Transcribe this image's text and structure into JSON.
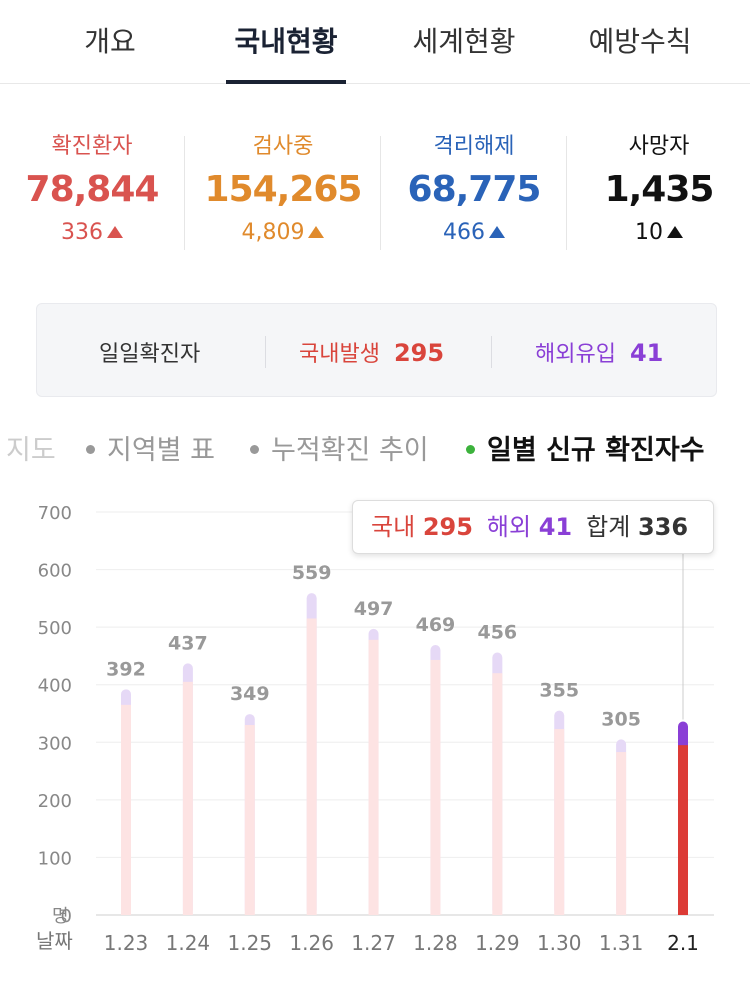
{
  "tabs": [
    {
      "label": "개요",
      "active": false
    },
    {
      "label": "국내현황",
      "active": true
    },
    {
      "label": "세계현황",
      "active": false
    },
    {
      "label": "예방수칙",
      "active": false
    }
  ],
  "stats": [
    {
      "label": "확진환자",
      "value": "78,844",
      "delta": "336",
      "color": "#d9534f"
    },
    {
      "label": "검사중",
      "value": "154,265",
      "delta": "4,809",
      "color": "#e08a2c"
    },
    {
      "label": "격리해제",
      "value": "68,775",
      "delta": "466",
      "color": "#2a63b8"
    },
    {
      "label": "사망자",
      "value": "1,435",
      "delta": "10",
      "color": "#111111"
    }
  ],
  "daily": {
    "title": "일일확진자",
    "domestic_label": "국내발생",
    "domestic_value": "295",
    "overseas_label": "해외유입",
    "overseas_value": "41"
  },
  "subtabs": [
    {
      "label": "지도",
      "state": "fade"
    },
    {
      "label": "지역별 표",
      "state": "normal"
    },
    {
      "label": "누적확진 추이",
      "state": "normal"
    },
    {
      "label": "일별 신규 확진자수",
      "state": "active"
    }
  ],
  "tooltip": {
    "domestic_label": "국내",
    "domestic_value": "295",
    "overseas_label": "해외",
    "overseas_value": "41",
    "total_label": "합계",
    "total_value": "336"
  },
  "chart_data": {
    "type": "bar",
    "y_unit_label": "명",
    "x_axis_label": "날짜",
    "yticks": [
      0,
      100,
      200,
      300,
      400,
      500,
      600,
      700
    ],
    "ylim": [
      0,
      700
    ],
    "categories": [
      "1.23",
      "1.24",
      "1.25",
      "1.26",
      "1.27",
      "1.28",
      "1.29",
      "1.30",
      "1.31",
      "2.1"
    ],
    "totals": [
      392,
      437,
      349,
      559,
      497,
      469,
      456,
      355,
      305,
      336
    ],
    "domestic": [
      365,
      405,
      330,
      515,
      478,
      443,
      420,
      323,
      283,
      295
    ],
    "overseas": [
      27,
      32,
      19,
      44,
      19,
      26,
      36,
      32,
      22,
      41
    ],
    "highlight_index": 9,
    "colors": {
      "domestic": "#fde3e3",
      "overseas": "#e6d9f6",
      "domestic_active": "#dc3b36",
      "overseas_active": "#8a3fd6"
    }
  }
}
